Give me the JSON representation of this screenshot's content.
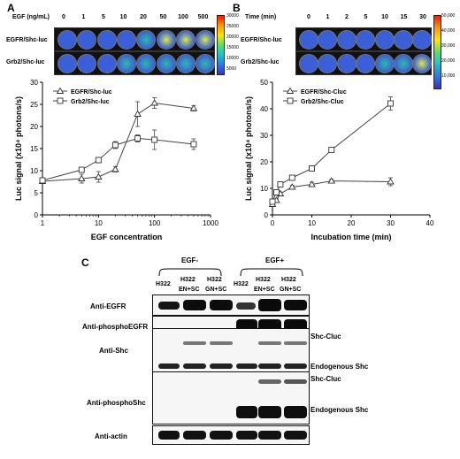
{
  "panel_a": {
    "letter": "A",
    "dose_label": "EGF (ng/mL)",
    "doses": [
      "0",
      "1",
      "5",
      "10",
      "20",
      "50",
      "100",
      "500"
    ],
    "strip_rows": [
      "EGFR/Shc-luc",
      "Grb2/Shc-luc"
    ],
    "colorbar_ticks": [
      "30000",
      "25000",
      "20000",
      "15000",
      "10000",
      "5000"
    ],
    "colors": {
      "bright": "#d8e84a",
      "mid": "#2fb9a6",
      "low": "#3a5fd6"
    }
  },
  "panel_b": {
    "letter": "B",
    "time_label": "Time (min)",
    "times": [
      "0",
      "1",
      "2",
      "5",
      "10",
      "15",
      "30"
    ],
    "strip_rows": [
      "EGFR/Shc-luc",
      "Grb2/Shc-luc"
    ],
    "colorbar_ticks": [
      "50,000",
      "40,000",
      "30,000",
      "20,000",
      "10,000"
    ]
  },
  "panel_c": {
    "letter": "C",
    "group_minus": "EGF-",
    "group_plus": "EGF+",
    "lanes_top": [
      "H322",
      "H322",
      "H322",
      "H322",
      "H322",
      "H322"
    ],
    "lanes_sub": [
      "",
      "EN+SC",
      "GN+SC",
      "",
      "EN+SC",
      "GN+SC"
    ],
    "row_labels": [
      "Anti-EGFR",
      "Anti-phosphoEGFR",
      "Anti-Shc",
      "Anti-phosphoShc",
      "Anti-actin"
    ],
    "band_labels": [
      "Shc-Cluc",
      "Endogenous Shc",
      "Shc-Cluc",
      "Endogenous Shc"
    ]
  },
  "chart_data": [
    {
      "type": "line",
      "xscale": "log",
      "xlabel": "EGF concentration",
      "ylabel": "Luc signal (x10⁴ photons/s)",
      "xlim": [
        1,
        1000
      ],
      "ylim": [
        0,
        30
      ],
      "xticks": [
        "1",
        "10",
        "100",
        "1000"
      ],
      "yticks": [
        "0",
        "5",
        "10",
        "15",
        "20",
        "25",
        "30"
      ],
      "legend_position": "top-left",
      "series": [
        {
          "name": "EGFR/Shc-luc",
          "marker": "triangle",
          "x": [
            1,
            5,
            10,
            20,
            50,
            100,
            500
          ],
          "y": [
            7.6,
            8.2,
            8.6,
            10.3,
            22.8,
            25.3,
            24.1
          ],
          "err": [
            0.3,
            1.0,
            1.2,
            0.6,
            2.8,
            1.2,
            0.6
          ]
        },
        {
          "name": "Grb2/Shc-luc",
          "marker": "square",
          "x": [
            1,
            5,
            10,
            20,
            50,
            100,
            500
          ],
          "y": [
            7.8,
            10.2,
            12.4,
            15.8,
            17.3,
            17.0,
            16.0
          ],
          "err": [
            0.3,
            0.5,
            0.6,
            0.8,
            0.8,
            2.2,
            1.2
          ]
        }
      ]
    },
    {
      "type": "line",
      "xlabel": "Incubation time (min)",
      "ylabel": "Luc signal (x10⁴ photons/s)",
      "xlim": [
        0,
        40
      ],
      "ylim": [
        0,
        50
      ],
      "xticks": [
        "0",
        "10",
        "20",
        "30",
        "40"
      ],
      "yticks": [
        "0",
        "10",
        "20",
        "30",
        "40",
        "50"
      ],
      "legend_position": "top-left",
      "series": [
        {
          "name": "EGFR/Shc-Cluc",
          "marker": "triangle",
          "x": [
            0,
            1,
            2,
            5,
            10,
            15,
            30
          ],
          "y": [
            4.0,
            5.5,
            8.0,
            10.5,
            11.5,
            12.8,
            12.5
          ],
          "err": [
            0.5,
            0.5,
            0.6,
            0.6,
            0.8,
            0.6,
            1.5
          ]
        },
        {
          "name": "Grb2/Shc-Cluc",
          "marker": "square",
          "x": [
            0,
            1,
            2,
            5,
            10,
            15,
            30
          ],
          "y": [
            5.0,
            8.5,
            11.5,
            14.0,
            17.5,
            24.5,
            42.0
          ],
          "err": [
            0.5,
            0.6,
            0.8,
            0.6,
            1.0,
            0.8,
            2.5
          ]
        }
      ]
    }
  ]
}
